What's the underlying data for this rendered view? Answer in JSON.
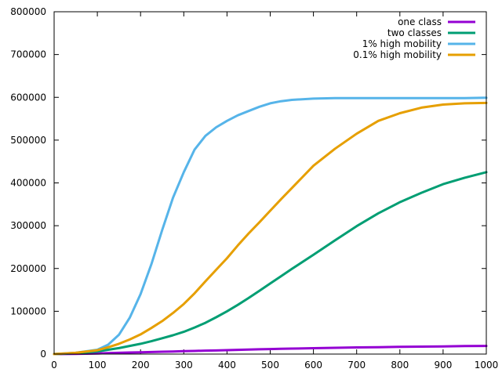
{
  "chart_data": {
    "type": "line",
    "title": "",
    "xlabel": "",
    "ylabel": "",
    "xlim": [
      0,
      1000
    ],
    "ylim": [
      0,
      800000
    ],
    "x_ticks": [
      0,
      100,
      200,
      300,
      400,
      500,
      600,
      700,
      800,
      900,
      1000
    ],
    "y_ticks": [
      0,
      100000,
      200000,
      300000,
      400000,
      500000,
      600000,
      700000,
      800000
    ],
    "x_tick_labels": [
      "0",
      "100",
      "200",
      "300",
      "400",
      "500",
      "600",
      "700",
      "800",
      "900",
      "1000"
    ],
    "y_tick_labels": [
      "0",
      "100000",
      "200000",
      "300000",
      "400000",
      "500000",
      "600000",
      "700000",
      "800000"
    ],
    "grid": false,
    "legend_position": "top-right",
    "x": [
      0,
      50,
      100,
      125,
      150,
      175,
      200,
      225,
      250,
      275,
      300,
      325,
      350,
      375,
      400,
      425,
      450,
      475,
      500,
      525,
      550,
      600,
      650,
      700,
      750,
      800,
      850,
      900,
      950,
      1000
    ],
    "series": [
      {
        "name": "one class",
        "color": "#9400d3",
        "values": [
          0,
          500,
          1500,
          2200,
          3000,
          3600,
          4200,
          4800,
          5500,
          6100,
          6800,
          7400,
          8000,
          8500,
          9200,
          9800,
          10500,
          11100,
          11700,
          12200,
          12800,
          13800,
          14700,
          15500,
          16200,
          16800,
          17400,
          18000,
          18600,
          19000
        ]
      },
      {
        "name": "two classes",
        "color": "#009e73",
        "values": [
          0,
          2000,
          6000,
          10000,
          14000,
          19000,
          24000,
          30000,
          37000,
          44000,
          52000,
          62000,
          73000,
          86000,
          100000,
          115000,
          131000,
          148000,
          165000,
          182000,
          199000,
          232000,
          266000,
          299000,
          329000,
          355000,
          377000,
          397000,
          412000,
          425000
        ]
      },
      {
        "name": "1% high mobility",
        "color": "#56b4e9",
        "values": [
          0,
          3000,
          10000,
          22000,
          45000,
          85000,
          140000,
          210000,
          290000,
          365000,
          425000,
          478000,
          510000,
          530000,
          545000,
          558000,
          568000,
          578000,
          586000,
          591000,
          594000,
          597000,
          598000,
          598000,
          598000,
          598000,
          598000,
          598000,
          598000,
          599000
        ]
      },
      {
        "name": "0.1% high mobility",
        "color": "#e69f00",
        "values": [
          0,
          3000,
          9000,
          16000,
          24000,
          34000,
          46000,
          61000,
          77000,
          96000,
          117000,
          142000,
          170000,
          197000,
          224000,
          254000,
          282000,
          308000,
          335000,
          362000,
          388000,
          440000,
          480000,
          515000,
          545000,
          563000,
          576000,
          583000,
          586000,
          587000
        ]
      }
    ]
  }
}
